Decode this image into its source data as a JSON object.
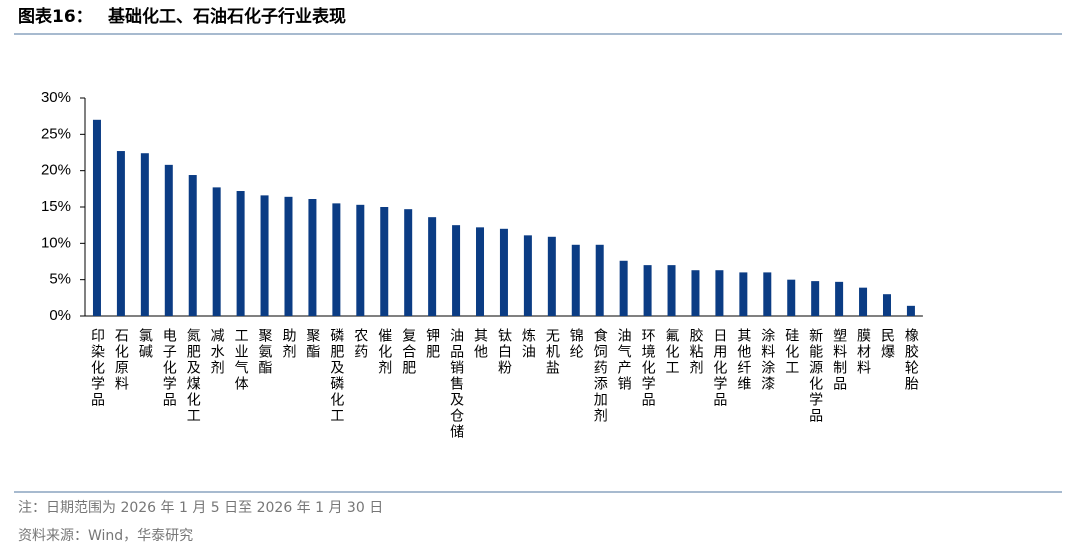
{
  "header": {
    "label": "图表16：",
    "title": "基础化工、石油石化子行业表现"
  },
  "chart_data": {
    "type": "bar",
    "categories": [
      "印染化学品",
      "石化原料",
      "氯碱",
      "电子化学品",
      "氮肥及煤化工",
      "减水剂",
      "工业气体",
      "聚氨酯",
      "助剂",
      "聚酯",
      "磷肥及磷化工",
      "农药",
      "催化剂",
      "复合肥",
      "钾肥",
      "油品销售及仓储",
      "其他",
      "钛白粉",
      "炼油",
      "无机盐",
      "锦纶",
      "食饲药添加剂",
      "油气产销",
      "环境化学品",
      "氟化工",
      "胶粘剂",
      "日用化学品",
      "其他纤维",
      "涂料涂漆",
      "硅化工",
      "新能源化学品",
      "塑料制品",
      "膜材料",
      "民爆",
      "橡胶轮胎"
    ],
    "values": [
      27.0,
      22.7,
      22.4,
      20.8,
      19.4,
      17.7,
      17.2,
      16.6,
      16.4,
      16.1,
      15.5,
      15.3,
      15.0,
      14.7,
      13.6,
      12.5,
      12.2,
      12.0,
      11.1,
      10.9,
      9.8,
      9.8,
      7.6,
      7.0,
      7.0,
      6.3,
      6.3,
      6.0,
      6.0,
      5.0,
      4.8,
      4.7,
      3.9,
      3.0,
      1.4
    ],
    "color": "#0b3c84",
    "ylim": [
      0,
      30
    ],
    "yticks": [
      {
        "value": 0,
        "label": "0%"
      },
      {
        "value": 5,
        "label": "5%"
      },
      {
        "value": 10,
        "label": "10%"
      },
      {
        "value": 15,
        "label": "15%"
      },
      {
        "value": 20,
        "label": "20%"
      },
      {
        "value": 25,
        "label": "25%"
      },
      {
        "value": 30,
        "label": "30%"
      }
    ]
  },
  "footer": {
    "note": "注：日期范围为 2026 年 1 月 5 日至 2026 年 1 月 30 日",
    "source": "资料来源：Wind，华泰研究"
  }
}
